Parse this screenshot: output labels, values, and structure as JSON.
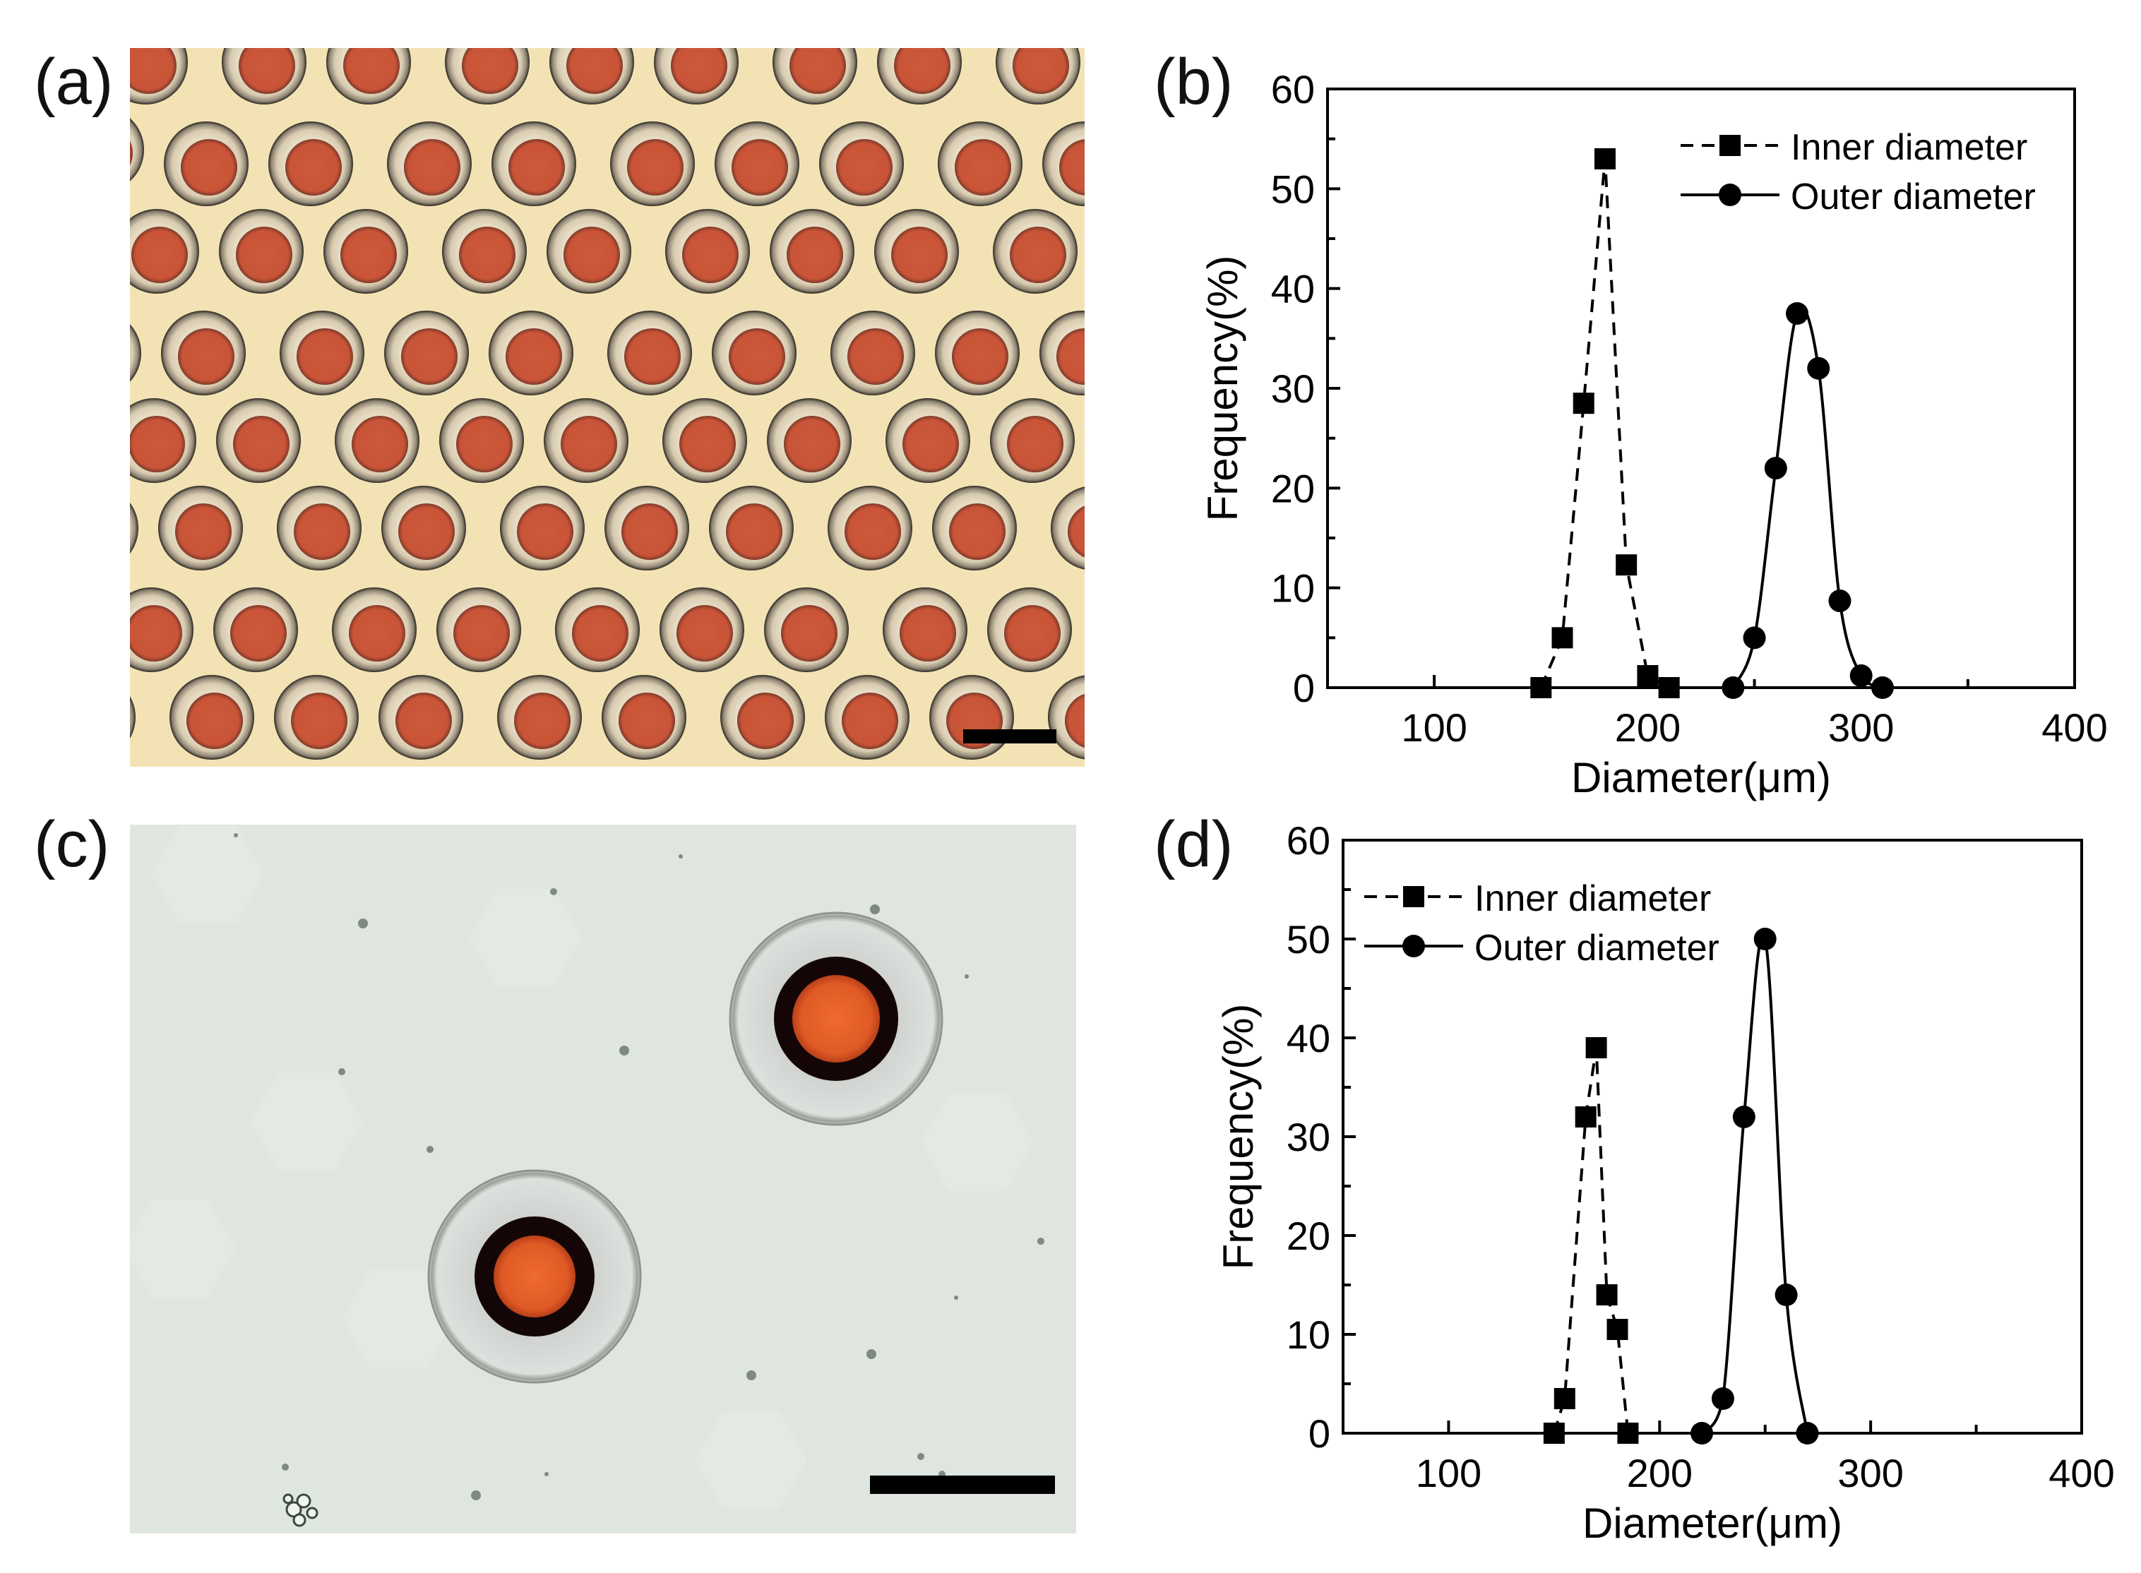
{
  "panels": {
    "a": {
      "label": "(a)"
    },
    "b": {
      "label": "(b)"
    },
    "c": {
      "label": "(c)"
    },
    "d": {
      "label": "(d)"
    }
  },
  "colors": {
    "a_background": "#f3e3b4",
    "a_core": "#cc5a3c",
    "a_shell": "#d8cbb0",
    "c_background": "#dfe6df",
    "c_core": "#e05a25",
    "c_ring": "#140606",
    "c_shell": "#dde1dd",
    "scale_bar": "#000000"
  },
  "chart_data": [
    {
      "panel": "b",
      "type": "line",
      "xlabel": "Diameter(μm)",
      "ylabel": "Frequency(%)",
      "xlim": [
        50,
        400
      ],
      "ylim": [
        0,
        60
      ],
      "x_ticks": [
        100,
        200,
        300,
        400
      ],
      "y_ticks": [
        0,
        10,
        20,
        30,
        40,
        50,
        60
      ],
      "legend_position": "top-right",
      "series": [
        {
          "name": "Inner diameter",
          "marker": "square",
          "line": "dashed",
          "x": [
            150,
            160,
            170,
            180,
            190,
            200,
            210
          ],
          "y": [
            0,
            5,
            28.5,
            53,
            12.3,
            1.2,
            0
          ]
        },
        {
          "name": "Outer diameter",
          "marker": "circle",
          "line": "solid",
          "x": [
            240,
            250,
            260,
            270,
            280,
            290,
            300,
            310
          ],
          "y": [
            0,
            5,
            22,
            37.5,
            32,
            8.7,
            1.2,
            0
          ]
        }
      ]
    },
    {
      "panel": "d",
      "type": "line",
      "xlabel": "Diameter(μm)",
      "ylabel": "Frequency(%)",
      "xlim": [
        50,
        400
      ],
      "ylim": [
        0,
        60
      ],
      "x_ticks": [
        100,
        200,
        300,
        400
      ],
      "y_ticks": [
        0,
        10,
        20,
        30,
        40,
        50,
        60
      ],
      "legend_position": "top-left",
      "series": [
        {
          "name": "Inner diameter",
          "marker": "square",
          "line": "dashed",
          "x": [
            150,
            155,
            165,
            170,
            175,
            180,
            185
          ],
          "y": [
            0,
            3.5,
            32,
            39,
            14,
            10.5,
            0
          ]
        },
        {
          "name": "Outer diameter",
          "marker": "circle",
          "line": "solid",
          "x": [
            220,
            230,
            240,
            250,
            260,
            270
          ],
          "y": [
            0,
            3.5,
            32,
            50,
            14,
            0
          ]
        }
      ]
    }
  ]
}
